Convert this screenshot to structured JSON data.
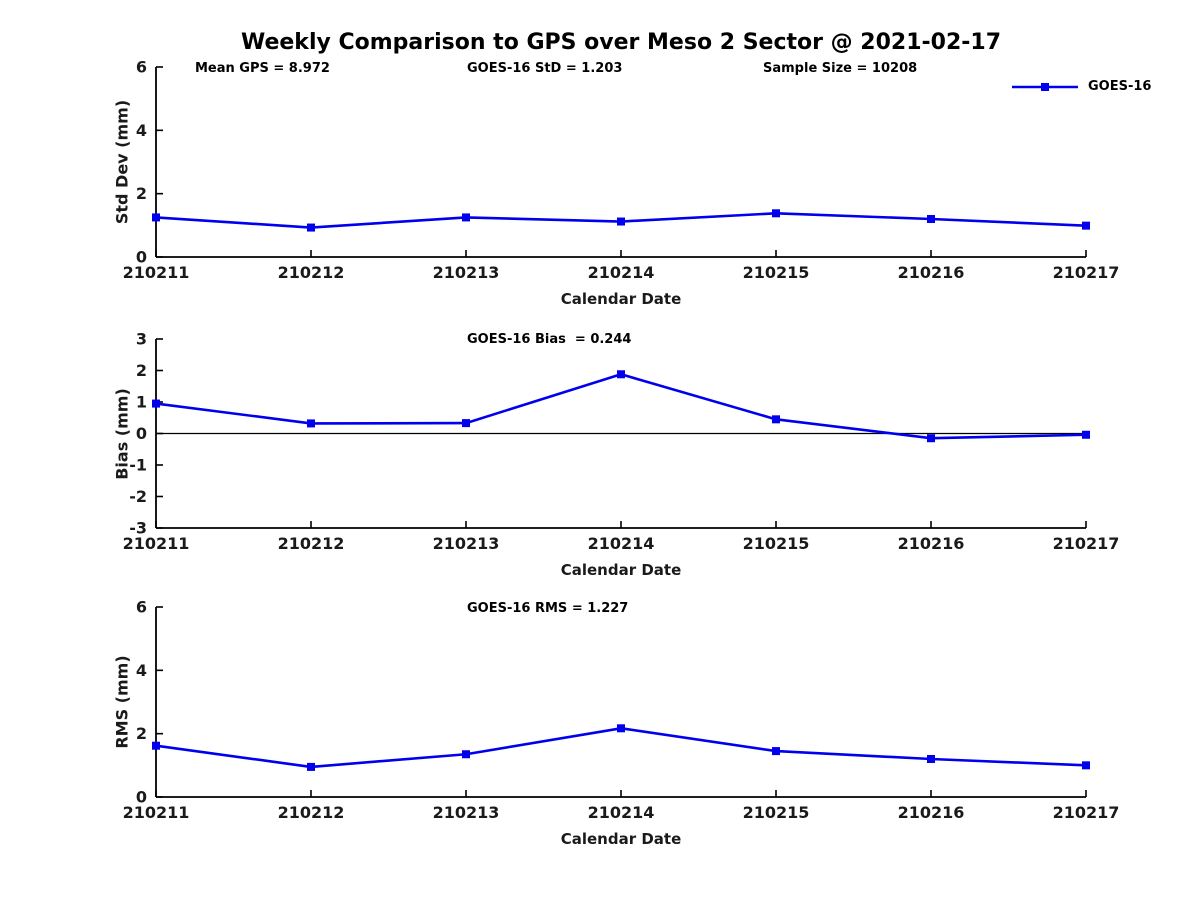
{
  "title": "Weekly Comparison to GPS over Meso 2 Sector @ 2021-02-17",
  "legend": {
    "label": "GOES-16",
    "position": "top-right",
    "boxed": false
  },
  "colors": {
    "series": "#0000EE",
    "axis": "#000000",
    "tick_text": "#1a1a1a",
    "text": "#000000",
    "background": "#ffffff"
  },
  "chart_data": [
    {
      "type": "line",
      "name": "stddev",
      "annotations": [
        "Mean GPS = 8.972",
        "GOES-16 StD = 1.203",
        "Sample Size = 10208"
      ],
      "categories": [
        "210211",
        "210212",
        "210213",
        "210214",
        "210215",
        "210216",
        "210217"
      ],
      "series": [
        {
          "name": "GOES-16",
          "values": [
            1.25,
            0.93,
            1.25,
            1.12,
            1.38,
            1.2,
            0.99
          ]
        }
      ],
      "xlabel": "Calendar Date",
      "ylabel": "Std Dev (mm)",
      "ylim": [
        0,
        6
      ],
      "yticks": [
        0,
        2,
        4,
        6
      ],
      "grid": false,
      "marker": "square"
    },
    {
      "type": "line",
      "name": "bias",
      "title": "GOES-16 Bias  = 0.244",
      "categories": [
        "210211",
        "210212",
        "210213",
        "210214",
        "210215",
        "210216",
        "210217"
      ],
      "series": [
        {
          "name": "GOES-16",
          "values": [
            0.95,
            0.32,
            0.33,
            1.88,
            0.45,
            -0.15,
            -0.04
          ]
        }
      ],
      "xlabel": "Calendar Date",
      "ylabel": "Bias (mm)",
      "ylim": [
        -3,
        3
      ],
      "yticks": [
        -3,
        -2,
        -1,
        0,
        1,
        2,
        3
      ],
      "zero_line": true,
      "grid": false,
      "marker": "square"
    },
    {
      "type": "line",
      "name": "rms",
      "title": "GOES-16 RMS = 1.227",
      "categories": [
        "210211",
        "210212",
        "210213",
        "210214",
        "210215",
        "210216",
        "210217"
      ],
      "series": [
        {
          "name": "GOES-16",
          "values": [
            1.62,
            0.95,
            1.35,
            2.17,
            1.45,
            1.2,
            1.0
          ]
        }
      ],
      "xlabel": "Calendar Date",
      "ylabel": "RMS (mm)",
      "ylim": [
        0,
        6
      ],
      "yticks": [
        0,
        2,
        4,
        6
      ],
      "grid": false,
      "marker": "square"
    }
  ]
}
